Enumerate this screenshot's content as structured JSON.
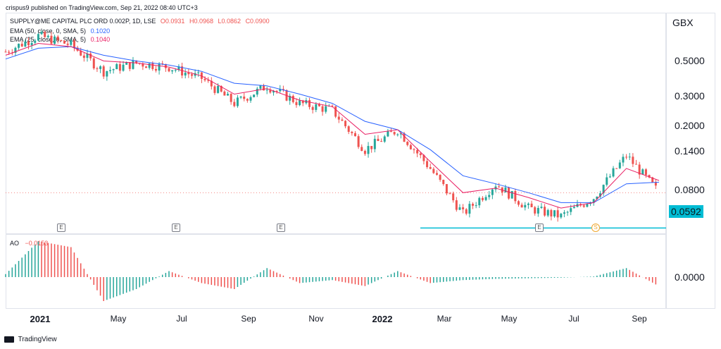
{
  "header": {
    "publisher_line": "crispus9 published on TradingView.com, Sep 21, 2022 08:40 UTC+3",
    "symbol_line": {
      "name": "SUPPLY@ME CAPITAL PLC ORD 0.002P, 1D, LSE",
      "open": "O0.0931",
      "high": "H0.0968",
      "low": "L0.0862",
      "close": "C0.0900"
    },
    "indicator_1": {
      "label": "EMA (50, close, 0, SMA, 5)",
      "value": "0.1020"
    },
    "indicator_2": {
      "label": "EMA (25, close, 0, SMA, 5)",
      "value": "0.1040"
    },
    "ao": {
      "label": "AO",
      "value": "−0.0153"
    }
  },
  "currency": "GBX",
  "price_scale": [
    "0.5000",
    "0.3000",
    "0.2000",
    "0.1400",
    "0.0800"
  ],
  "price_tag": "0.0592",
  "ao_scale": "0.0000",
  "time_axis": [
    {
      "label": "2021",
      "year": true
    },
    {
      "label": "May",
      "year": false
    },
    {
      "label": "Jul",
      "year": false
    },
    {
      "label": "Sep",
      "year": false
    },
    {
      "label": "Nov",
      "year": false
    },
    {
      "label": "2022",
      "year": true
    },
    {
      "label": "Mar",
      "year": false
    },
    {
      "label": "May",
      "year": false
    },
    {
      "label": "Jul",
      "year": false
    },
    {
      "label": "Sep",
      "year": false
    }
  ],
  "event_markers": [
    {
      "label": "E",
      "kind": "earnings"
    },
    {
      "label": "E",
      "kind": "earnings"
    },
    {
      "label": "E",
      "kind": "earnings"
    },
    {
      "label": "E",
      "kind": "earnings"
    },
    {
      "label": "S",
      "kind": "split"
    }
  ],
  "footer": "TradingView",
  "colors": {
    "up": "#26a69a",
    "down": "#ef5350",
    "ema50": "#2962ff",
    "ema25": "#e91e63",
    "support": "#00bcd4",
    "axis": "#e0e3eb"
  },
  "chart_data": {
    "type": "line",
    "title": "SUPPLY@ME CAPITAL PLC ORD 0.002P, 1D, LSE",
    "scale": "log",
    "x": [
      "2021-01",
      "2021-02",
      "2021-03",
      "2021-04",
      "2021-05",
      "2021-06",
      "2021-07",
      "2021-08",
      "2021-09",
      "2021-10",
      "2021-11",
      "2021-12",
      "2022-01",
      "2022-02",
      "2022-03",
      "2022-04",
      "2022-05",
      "2022-06",
      "2022-07",
      "2022-08",
      "2022-09"
    ],
    "series": [
      {
        "name": "SUPPLY@ME CAPITAL PLC ORD 0.002P",
        "values": [
          0.48,
          0.58,
          0.52,
          0.38,
          0.42,
          0.4,
          0.35,
          0.26,
          0.32,
          0.26,
          0.24,
          0.15,
          0.19,
          0.12,
          0.07,
          0.1,
          0.075,
          0.068,
          0.085,
          0.14,
          0.09
        ]
      },
      {
        "name": "EMA (50, close, 0, SMA, 5)",
        "values": [
          0.44,
          0.5,
          0.51,
          0.46,
          0.43,
          0.41,
          0.38,
          0.33,
          0.32,
          0.29,
          0.26,
          0.21,
          0.19,
          0.15,
          0.11,
          0.1,
          0.09,
          0.08,
          0.08,
          0.1,
          0.102
        ]
      },
      {
        "name": "EMA (25, close, 0, SMA, 5)",
        "values": [
          0.46,
          0.53,
          0.51,
          0.43,
          0.42,
          0.4,
          0.36,
          0.29,
          0.31,
          0.27,
          0.25,
          0.18,
          0.19,
          0.13,
          0.09,
          0.095,
          0.085,
          0.075,
          0.08,
          0.12,
          0.104
        ]
      }
    ],
    "support_level": 0.0592,
    "ylim": [
      0.056,
      0.75
    ],
    "ao": {
      "name": "AO",
      "last": -0.0153,
      "values": [
        0.005,
        0.06,
        0.05,
        -0.04,
        -0.02,
        0.01,
        -0.01,
        -0.02,
        0.015,
        -0.01,
        -0.005,
        -0.015,
        0.01,
        -0.01,
        -0.005,
        -0.003,
        -0.002,
        -0.001,
        0.001,
        0.015,
        -0.0153
      ]
    }
  }
}
